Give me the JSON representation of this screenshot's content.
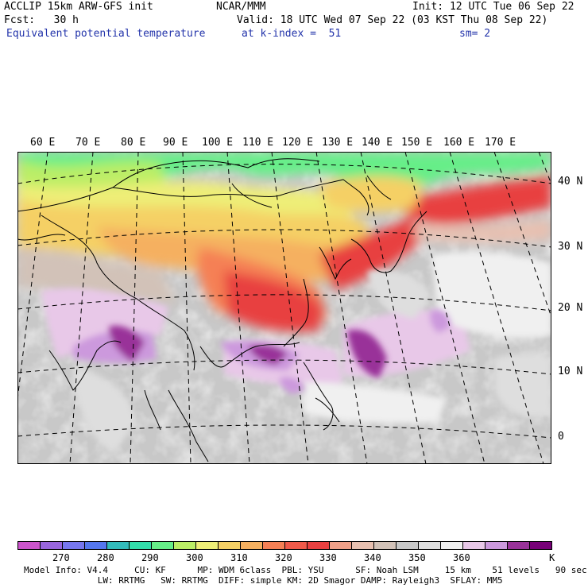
{
  "header": {
    "line1_left": "ACCLIP 15km ARW-GFS init",
    "line1_center": "NCAR/MMM",
    "line1_right": "Init: 12 UTC Tue 06 Sep 22",
    "line2_left": "Fcst:   30 h",
    "line2_right": "Valid: 18 UTC Wed 07 Sep 22 (03 KST Thu 08 Sep 22)",
    "line3_left": "Equivalent potential temperature",
    "line3_center": "at k-index =  51",
    "line3_right": "sm= 2"
  },
  "longitude_labels": [
    "60 E",
    "70 E",
    "80 E",
    "90 E",
    "100 E",
    "110 E",
    "120 E",
    "130 E",
    "140 E",
    "150 E",
    "160 E",
    "170 E"
  ],
  "latitude_labels": [
    "40 N",
    "30 N",
    "20 N",
    "10 N",
    "0"
  ],
  "colorbar": {
    "colors": [
      "#cc55cc",
      "#9966dd",
      "#7777ee",
      "#5577ee",
      "#33bbbb",
      "#33ddaa",
      "#66ee88",
      "#bbee66",
      "#eeee77",
      "#f5d065",
      "#f5b060",
      "#f58055",
      "#f05a4a",
      "#e84040",
      "#f0a088",
      "#e8c0b0",
      "#d2c2b8",
      "#c8c8c8",
      "#dedede",
      "#f0f0f0",
      "#e8c8e8",
      "#cc99dd",
      "#993399",
      "#770077"
    ],
    "labels": [
      "270",
      "280",
      "290",
      "300",
      "310",
      "320",
      "330",
      "340",
      "350",
      "360"
    ],
    "unit": "K"
  },
  "footer": {
    "line1": "Model Info: V4.4     CU: KF      MP: WDM 6class  PBL: YSU      SF: Noah LSM     15 km    51 levels   90 sec",
    "line2": "              LW: RRTMG   SW: RRTMG  DIFF: simple KM: 2D Smagor DAMP: Rayleigh3  SFLAY: MM5"
  }
}
